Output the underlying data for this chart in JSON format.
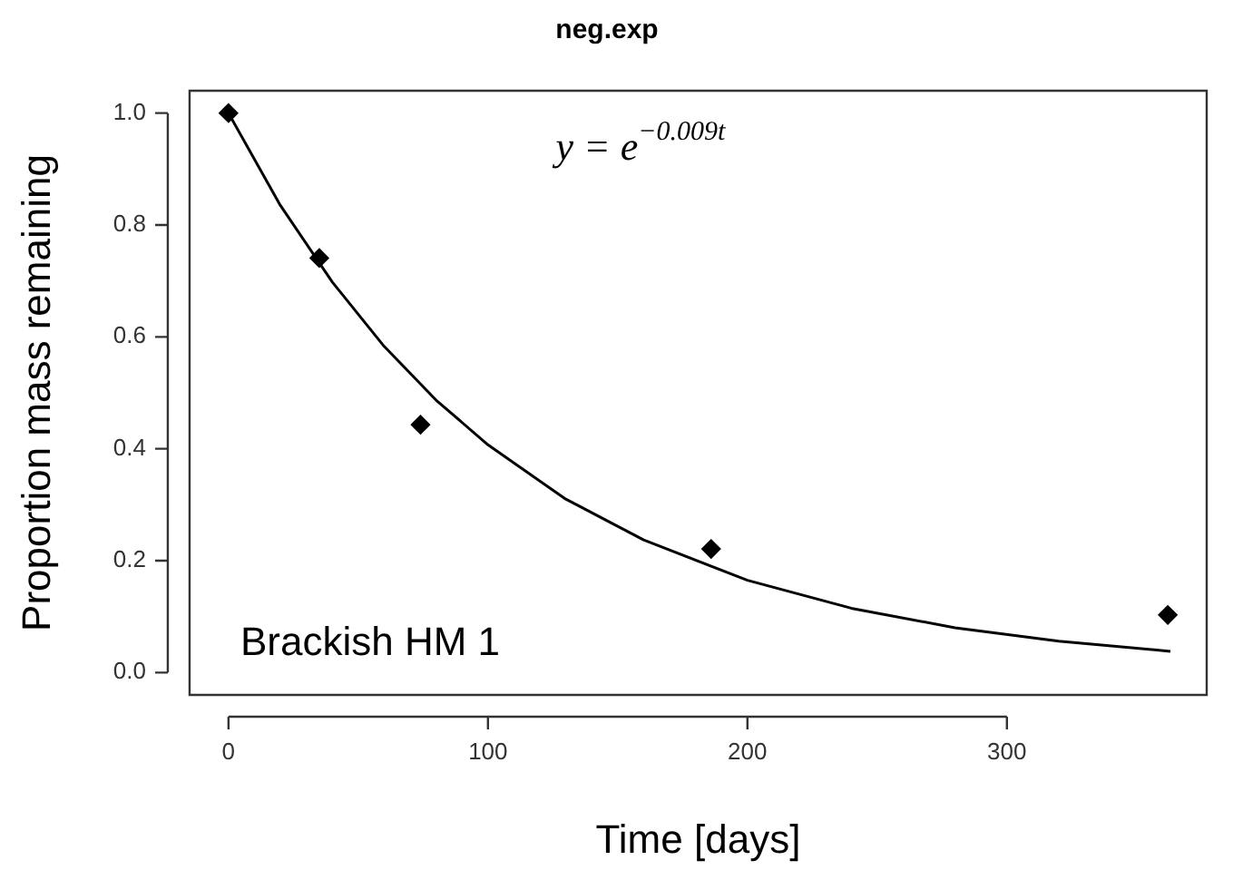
{
  "chart_data": {
    "type": "scatter",
    "title": "neg.exp",
    "xlabel": "Time [days]",
    "ylabel": "Proportion mass remaining",
    "annotations": [
      "y = e$^{−0.009t}$",
      "Brackish HM 1"
    ],
    "xlim": [
      -15,
      377
    ],
    "ylim": [
      -0.04,
      1.04
    ],
    "xticks": [
      0,
      100,
      200,
      300
    ],
    "yticks": [
      {
        "value": 0,
        "label": "0.0"
      },
      {
        "value": 0.2,
        "label": "0.2"
      },
      {
        "value": 0.4,
        "label": "0.4"
      },
      {
        "value": 0.6,
        "label": "0.6"
      },
      {
        "value": 0.8,
        "label": "0.8"
      },
      {
        "value": 1,
        "label": "1.0"
      }
    ],
    "grid": false,
    "legend": false,
    "marker": "diamond",
    "series": [
      {
        "type": "scatter",
        "color": "#000000",
        "x": [
          0,
          35,
          74,
          186,
          362
        ],
        "values": [
          1.0,
          0.741,
          0.443,
          0.221,
          0.103
        ]
      },
      {
        "type": "line",
        "color": "#000000",
        "marker": "none",
        "x": [
          0,
          20,
          40,
          60,
          80,
          100,
          130,
          160,
          200,
          240,
          280,
          320,
          363
        ],
        "values": [
          1,
          0.835,
          0.698,
          0.583,
          0.487,
          0.407,
          0.31,
          0.237,
          0.165,
          0.115,
          0.08,
          0.056,
          0.038
        ]
      }
    ]
  }
}
